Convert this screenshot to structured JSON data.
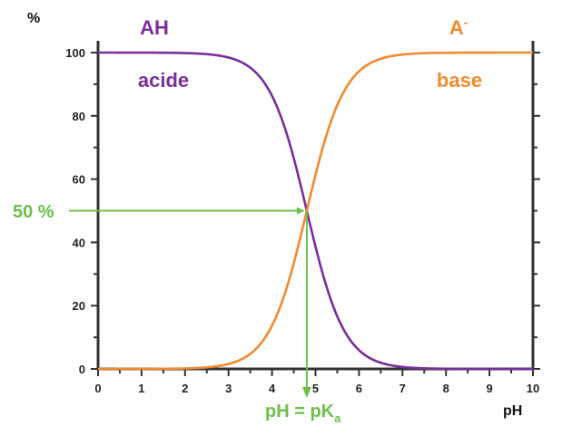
{
  "chart_data": {
    "type": "line",
    "title": "",
    "xlabel": "pH",
    "ylabel": "%",
    "xlim": [
      0,
      10
    ],
    "ylim": [
      0,
      100
    ],
    "x_ticks": [
      0,
      1,
      2,
      3,
      4,
      5,
      6,
      7,
      8,
      9,
      10
    ],
    "y_ticks": [
      0,
      20,
      40,
      60,
      80,
      100
    ],
    "grid": false,
    "pKa": 4.8,
    "series": [
      {
        "name": "AH",
        "sublabel": "acide",
        "color": "#7b2d9b",
        "x": [
          0,
          1,
          2,
          2.5,
          3,
          3.5,
          4,
          4.25,
          4.5,
          4.75,
          4.8,
          5,
          5.25,
          5.5,
          5.75,
          6,
          6.5,
          7,
          8,
          9,
          10
        ],
        "y": [
          100,
          100,
          99.8,
          99.5,
          98.4,
          95.2,
          86.3,
          78.0,
          66.6,
          52.9,
          50,
          38.7,
          26.2,
          16.6,
          10.1,
          5.9,
          2.0,
          0.6,
          0.1,
          0,
          0
        ]
      },
      {
        "name": "A-",
        "sublabel": "base",
        "color": "#f28a2e",
        "x": [
          0,
          1,
          2,
          2.5,
          3,
          3.5,
          4,
          4.25,
          4.5,
          4.75,
          4.8,
          5,
          5.25,
          5.5,
          5.75,
          6,
          6.5,
          7,
          8,
          9,
          10
        ],
        "y": [
          0,
          0,
          0.2,
          0.5,
          1.6,
          4.8,
          13.7,
          22.0,
          33.4,
          47.1,
          50,
          61.3,
          73.8,
          83.4,
          89.9,
          94.1,
          98.0,
          99.4,
          99.9,
          100,
          100
        ]
      }
    ],
    "annotations": [
      {
        "text": "50 %",
        "color": "#6cc04a"
      },
      {
        "text": "pH = pK",
        "subscript": "a",
        "color": "#6cc04a"
      }
    ],
    "species_labels": {
      "acid": {
        "name": "AH",
        "sub": "acide"
      },
      "base": {
        "name": "A",
        "sup": "-",
        "sub": "base"
      }
    }
  }
}
